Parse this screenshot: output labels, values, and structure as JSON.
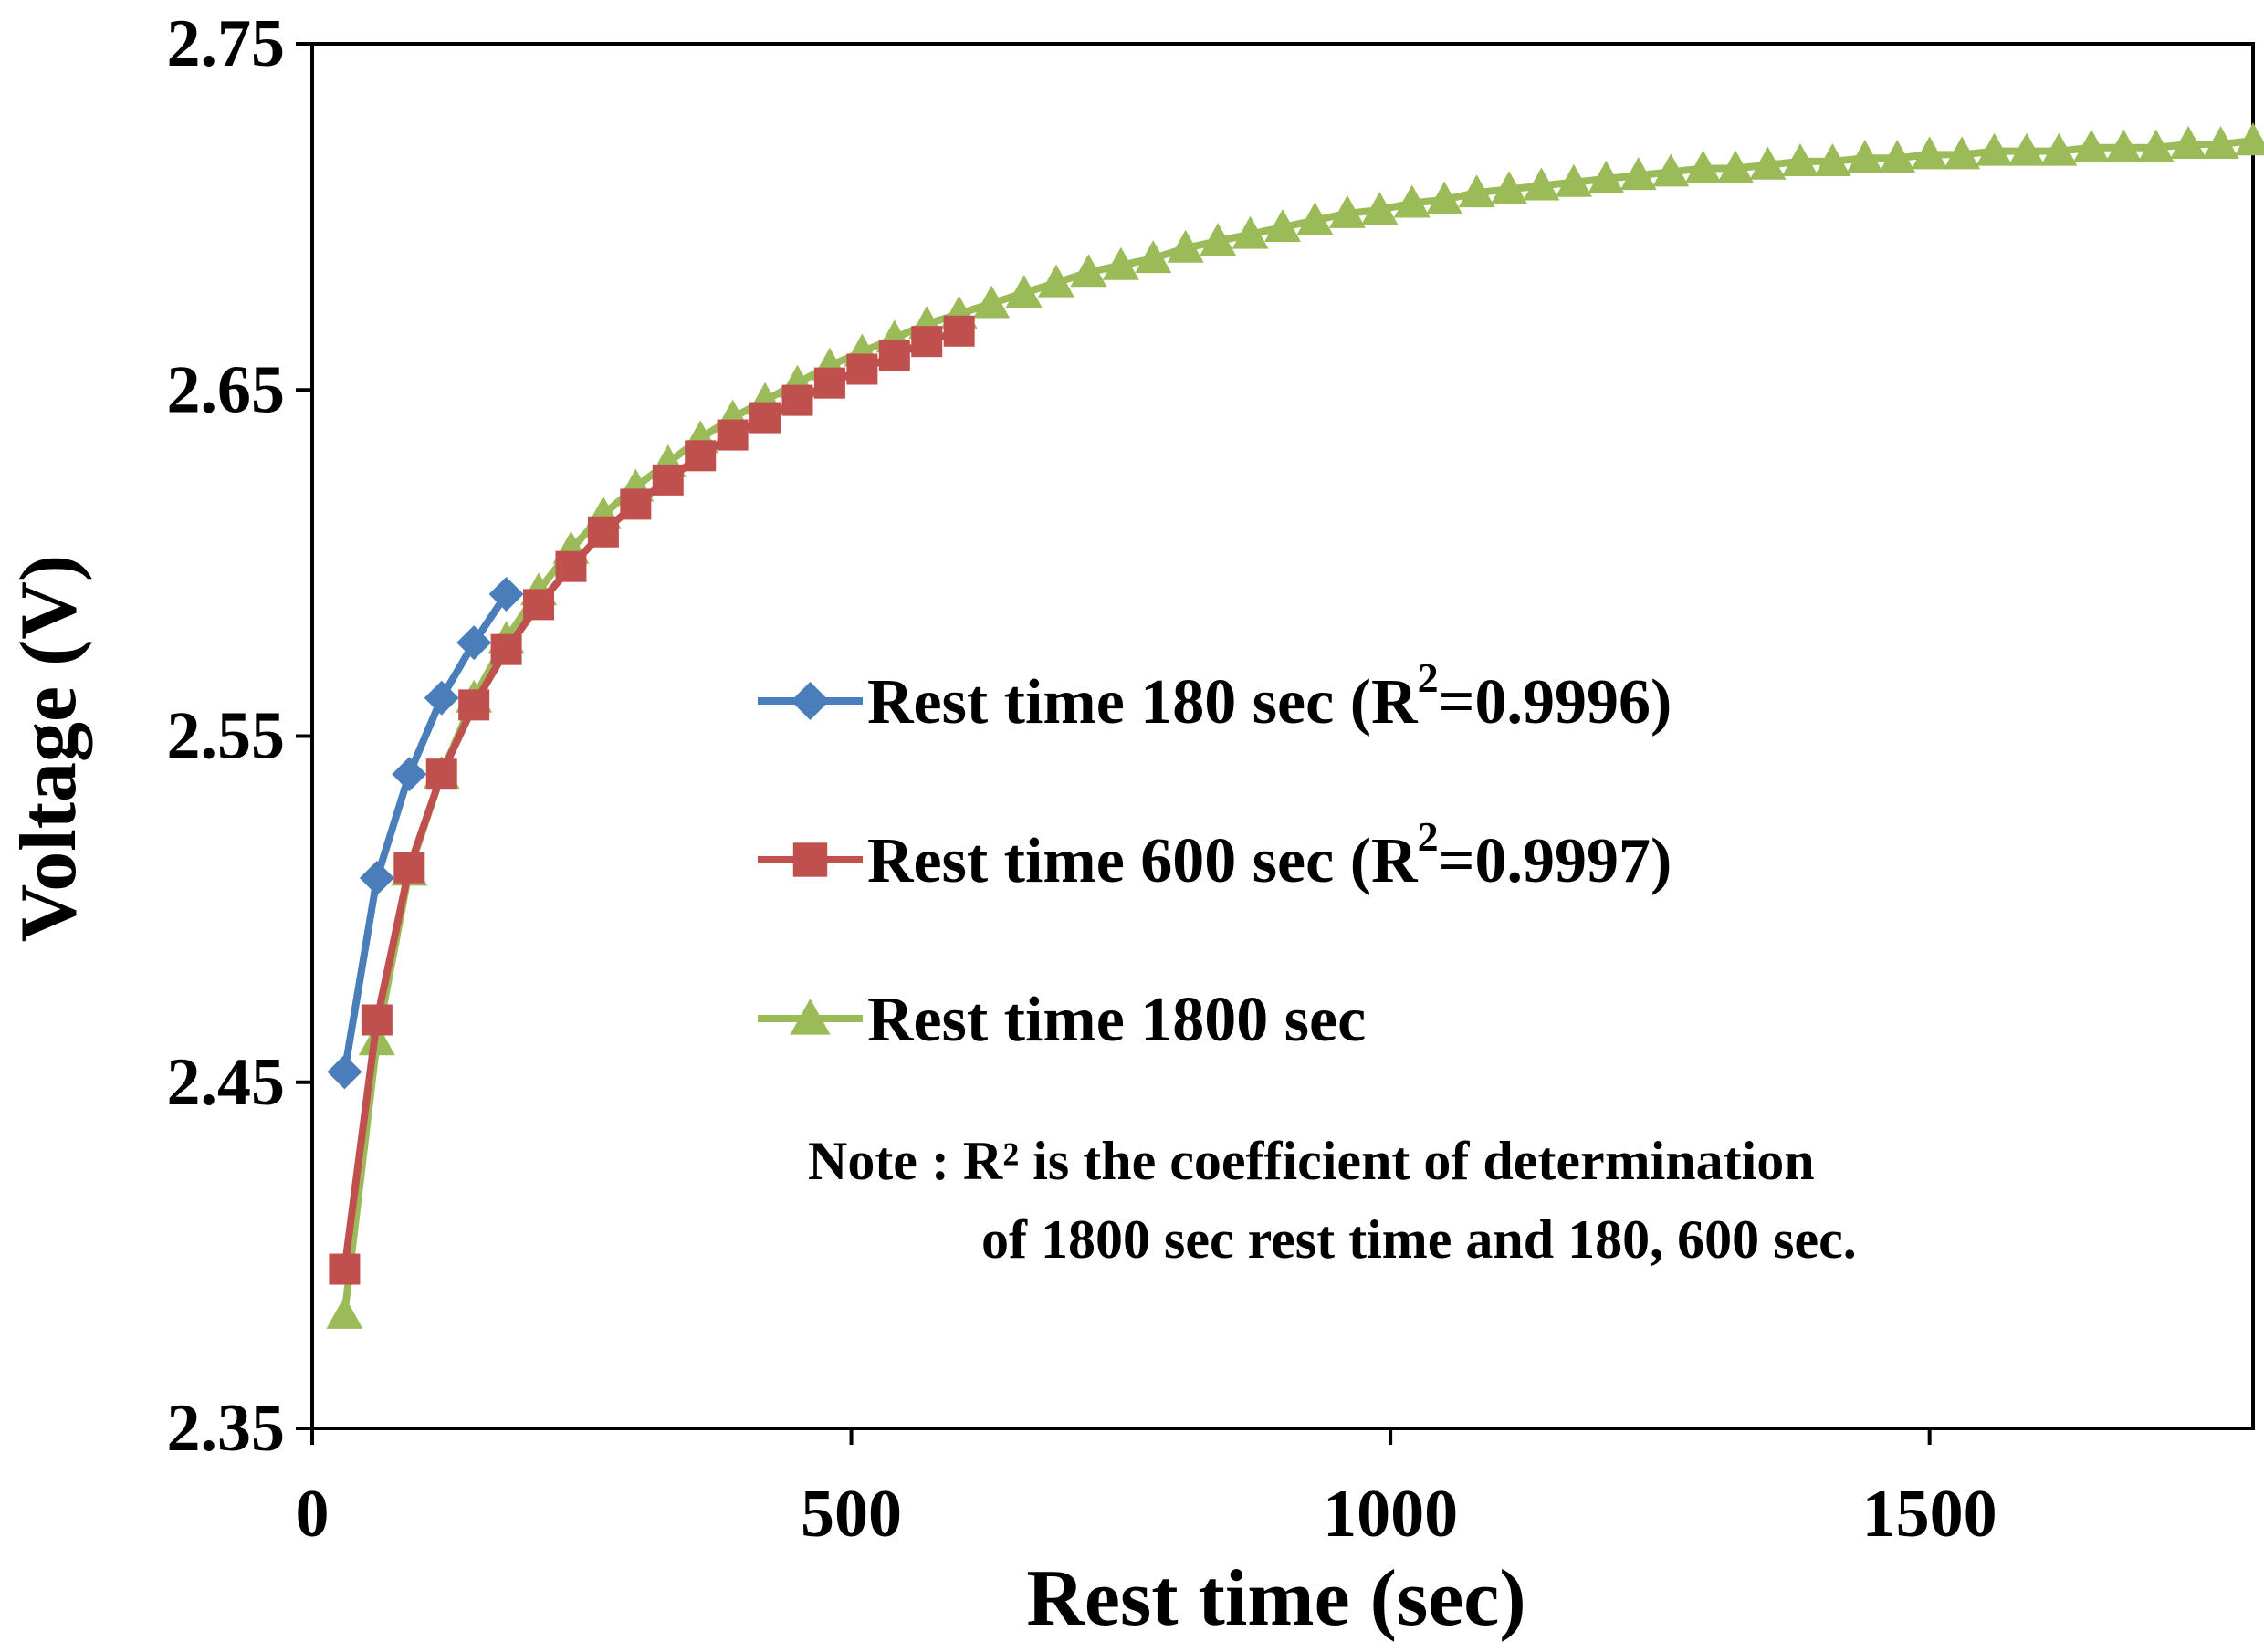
{
  "chart_data": {
    "type": "line",
    "title": "",
    "xlabel": "Rest time (sec)",
    "ylabel": "Voltage (V)",
    "xlim": [
      0,
      1800
    ],
    "ylim": [
      2.35,
      2.75
    ],
    "xticks": [
      0,
      500,
      1000,
      1500
    ],
    "xtick_labels": [
      "0",
      "500",
      "1000",
      "1500"
    ],
    "yticks": [
      2.35,
      2.45,
      2.55,
      2.65,
      2.75
    ],
    "ytick_labels": [
      "2.35",
      "2.45",
      "2.55",
      "2.65",
      "2.75"
    ],
    "grid": false,
    "legend_position": "center-right",
    "series": [
      {
        "name": "Rest time  180 sec (R",
        "sup": "2",
        "suffix": "=0.9996)",
        "color": "#4a7ebb",
        "marker": "diamond",
        "x": [
          30,
          60,
          90,
          120,
          150,
          180
        ],
        "y": [
          2.453,
          2.509,
          2.539,
          2.561,
          2.577,
          2.591
        ]
      },
      {
        "name": "Rest time  600 sec (R",
        "sup": "2",
        "suffix": "=0.9997)",
        "color": "#c0504d",
        "marker": "square",
        "x": [
          30,
          60,
          90,
          120,
          150,
          180,
          210,
          240,
          270,
          300,
          330,
          360,
          390,
          420,
          450,
          480,
          510,
          540,
          570,
          600
        ],
        "y": [
          2.396,
          2.468,
          2.512,
          2.539,
          2.559,
          2.575,
          2.588,
          2.599,
          2.609,
          2.617,
          2.624,
          2.631,
          2.637,
          2.642,
          2.647,
          2.652,
          2.656,
          2.66,
          2.664,
          2.667
        ]
      },
      {
        "name": "Rest time 1800 sec",
        "sup": "",
        "suffix": "",
        "color": "#9bbb59",
        "marker": "triangle",
        "x": [
          30,
          60,
          90,
          120,
          150,
          180,
          210,
          240,
          270,
          300,
          330,
          360,
          390,
          420,
          450,
          480,
          510,
          540,
          570,
          600,
          630,
          660,
          690,
          720,
          750,
          780,
          810,
          840,
          870,
          900,
          930,
          960,
          990,
          1020,
          1050,
          1080,
          1110,
          1140,
          1170,
          1200,
          1230,
          1260,
          1290,
          1320,
          1350,
          1380,
          1410,
          1440,
          1470,
          1500,
          1530,
          1560,
          1590,
          1620,
          1650,
          1680,
          1710,
          1740,
          1770,
          1800
        ],
        "y": [
          2.383,
          2.462,
          2.511,
          2.539,
          2.561,
          2.578,
          2.592,
          2.604,
          2.614,
          2.622,
          2.629,
          2.636,
          2.642,
          2.647,
          2.652,
          2.657,
          2.661,
          2.665,
          2.669,
          2.672,
          2.675,
          2.678,
          2.681,
          2.684,
          2.686,
          2.688,
          2.691,
          2.693,
          2.695,
          2.697,
          2.699,
          2.701,
          2.702,
          2.704,
          2.705,
          2.707,
          2.708,
          2.709,
          2.71,
          2.711,
          2.712,
          2.713,
          2.714,
          2.714,
          2.715,
          2.716,
          2.716,
          2.717,
          2.717,
          2.718,
          2.718,
          2.719,
          2.719,
          2.719,
          2.72,
          2.72,
          2.72,
          2.721,
          2.721,
          2.722
        ]
      }
    ],
    "note_line1": "Note : R² is the coefficient of determination",
    "note_line2": "of 1800 sec rest time and 180, 600 sec."
  }
}
